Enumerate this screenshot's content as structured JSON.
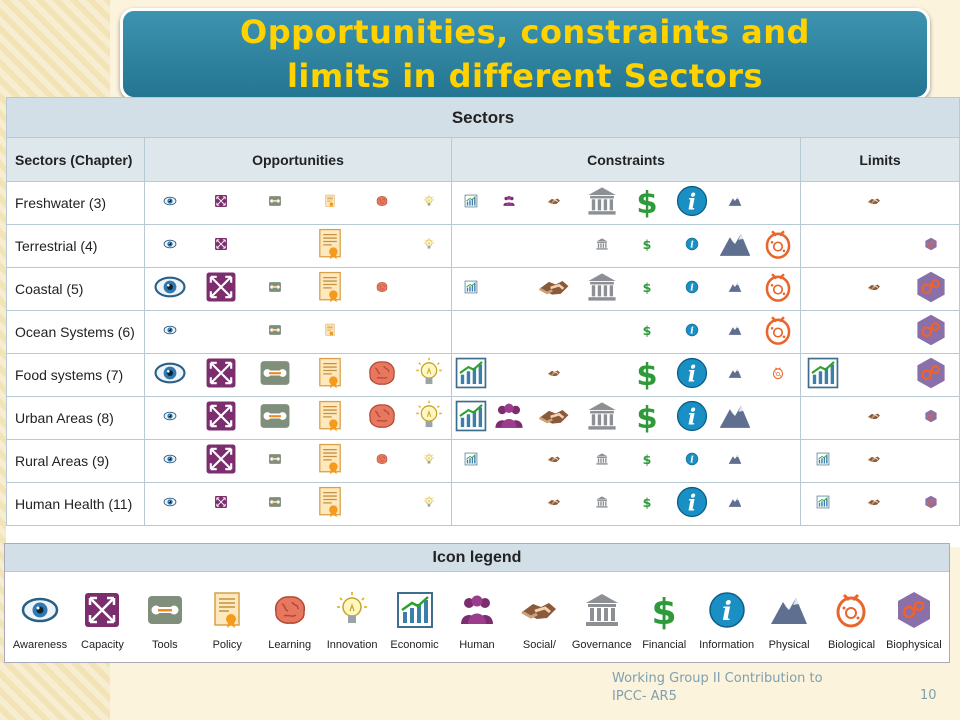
{
  "slide": {
    "title_line1": "Opportunities, constraints and",
    "title_line2": "limits in different Sectors",
    "footer_line1": "Working Group II Contribution to",
    "footer_line2": "IPCC- AR5",
    "page_number": "10"
  },
  "table": {
    "title": "Sectors",
    "columns": [
      "Sectors (Chapter)",
      "Opportunities",
      "Constraints",
      "Limits"
    ],
    "opportunity_icons": [
      "awareness",
      "capacity",
      "tools",
      "policy",
      "learning",
      "innovation"
    ],
    "constraint_icons": [
      "economic",
      "human-capacity",
      "social-cultural",
      "governance",
      "financial",
      "information",
      "physical",
      "biological"
    ],
    "limit_icons": [
      "economic",
      "social-cultural",
      "biophysical"
    ],
    "rows": [
      {
        "sector": "Freshwater (3)",
        "opportunities": [
          "s",
          "s",
          "s",
          "s",
          "s",
          "s"
        ],
        "constraints": [
          "s",
          "s",
          "s",
          "l",
          "l",
          "l",
          "s",
          "-"
        ],
        "limits": [
          "-",
          "s",
          "-"
        ]
      },
      {
        "sector": "Terrestrial (4)",
        "opportunities": [
          "s",
          "s",
          "-",
          "l",
          "-",
          "s"
        ],
        "constraints": [
          "-",
          "-",
          "-",
          "s",
          "s",
          "s",
          "l",
          "l"
        ],
        "limits": [
          "-",
          "-",
          "s"
        ]
      },
      {
        "sector": "Coastal (5)",
        "opportunities": [
          "l",
          "l",
          "s",
          "l",
          "s",
          "-"
        ],
        "constraints": [
          "s",
          "-",
          "l",
          "l",
          "s",
          "s",
          "s",
          "l"
        ],
        "limits": [
          "-",
          "s",
          "l"
        ]
      },
      {
        "sector": "Ocean Systems (6)",
        "opportunities": [
          "s",
          "-",
          "s",
          "s",
          "-",
          "-"
        ],
        "constraints": [
          "-",
          "-",
          "-",
          "-",
          "s",
          "s",
          "s",
          "l"
        ],
        "limits": [
          "-",
          "-",
          "l"
        ]
      },
      {
        "sector": "Food systems (7)",
        "opportunities": [
          "l",
          "l",
          "l",
          "l",
          "l",
          "l"
        ],
        "constraints": [
          "l",
          "-",
          "s",
          "-",
          "l",
          "l",
          "s",
          "s"
        ],
        "limits": [
          "l",
          "-",
          "l"
        ]
      },
      {
        "sector": "Urban Areas (8)",
        "opportunities": [
          "s",
          "l",
          "l",
          "l",
          "l",
          "l"
        ],
        "constraints": [
          "l",
          "l",
          "l",
          "l",
          "l",
          "l",
          "l",
          "-"
        ],
        "limits": [
          "-",
          "s",
          "s"
        ]
      },
      {
        "sector": "Rural Areas (9)",
        "opportunities": [
          "s",
          "l",
          "s",
          "l",
          "s",
          "s"
        ],
        "constraints": [
          "s",
          "-",
          "s",
          "s",
          "s",
          "s",
          "s",
          "-"
        ],
        "limits": [
          "s",
          "s",
          "-"
        ]
      },
      {
        "sector": "Human Health (11)",
        "opportunities": [
          "s",
          "s",
          "s",
          "l",
          "-",
          "s"
        ],
        "constraints": [
          "-",
          "-",
          "s",
          "s",
          "s",
          "l",
          "s",
          "-"
        ],
        "limits": [
          "s",
          "s",
          "s"
        ]
      }
    ]
  },
  "legend": {
    "title": "Icon legend",
    "items": [
      {
        "icon": "awareness-icon",
        "label": "Awareness"
      },
      {
        "icon": "capacity-icon",
        "label": "Capacity"
      },
      {
        "icon": "tools-icon",
        "label": "Tools"
      },
      {
        "icon": "policy-icon",
        "label": "Policy"
      },
      {
        "icon": "learning-icon",
        "label": "Learning"
      },
      {
        "icon": "innovation-icon",
        "label": "Innovation"
      },
      {
        "icon": "economic-icon",
        "label": "Economic"
      },
      {
        "icon": "human-capacity-icon",
        "label": "Human"
      },
      {
        "icon": "social-cultural-icon",
        "label": "Social/"
      },
      {
        "icon": "governance-icon",
        "label": "Governance"
      },
      {
        "icon": "financial-icon",
        "label": "Financial"
      },
      {
        "icon": "information-icon",
        "label": "Information"
      },
      {
        "icon": "physical-icon",
        "label": "Physical"
      },
      {
        "icon": "biological-icon",
        "label": "Biological"
      },
      {
        "icon": "biophysical-icon",
        "label": "Biophysical"
      }
    ]
  },
  "colors": {
    "title_bg": "#2f86a3",
    "title_text": "#ffd200",
    "capacity": "#7b2d6e",
    "financial": "#2e9a3a",
    "information": "#1a8fc4",
    "biological": "#e8662c",
    "biophysical": "#8a6fa8"
  }
}
